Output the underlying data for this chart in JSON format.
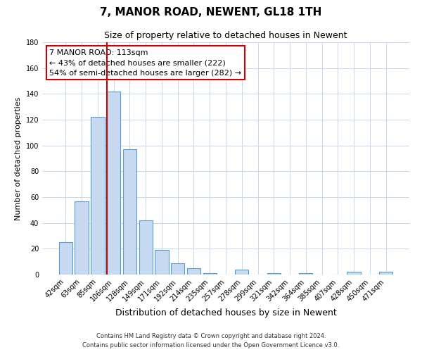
{
  "title": "7, MANOR ROAD, NEWENT, GL18 1TH",
  "subtitle": "Size of property relative to detached houses in Newent",
  "xlabel": "Distribution of detached houses by size in Newent",
  "ylabel": "Number of detached properties",
  "bar_labels": [
    "42sqm",
    "63sqm",
    "85sqm",
    "106sqm",
    "128sqm",
    "149sqm",
    "171sqm",
    "192sqm",
    "214sqm",
    "235sqm",
    "257sqm",
    "278sqm",
    "299sqm",
    "321sqm",
    "342sqm",
    "364sqm",
    "385sqm",
    "407sqm",
    "428sqm",
    "450sqm",
    "471sqm"
  ],
  "bar_values": [
    25,
    57,
    122,
    142,
    97,
    42,
    19,
    9,
    5,
    1,
    0,
    4,
    0,
    1,
    0,
    1,
    0,
    0,
    2,
    0,
    2
  ],
  "bar_color": "#c6d9f0",
  "bar_edge_color": "#5b9bd5",
  "vline_x": 3.0,
  "vline_color": "#cc0000",
  "ylim": [
    0,
    180
  ],
  "yticks": [
    0,
    20,
    40,
    60,
    80,
    100,
    120,
    140,
    160,
    180
  ],
  "annotation_title": "7 MANOR ROAD: 113sqm",
  "annotation_line1": "← 43% of detached houses are smaller (222)",
  "annotation_line2": "54% of semi-detached houses are larger (282) →",
  "annotation_box_color": "#ffffff",
  "annotation_box_edge": "#cc0000",
  "footer_line1": "Contains HM Land Registry data © Crown copyright and database right 2024.",
  "footer_line2": "Contains public sector information licensed under the Open Government Licence v3.0.",
  "background_color": "#ffffff",
  "grid_color": "#c8d8ec",
  "title_fontsize": 11,
  "subtitle_fontsize": 9,
  "tick_fontsize": 7,
  "ylabel_fontsize": 8,
  "xlabel_fontsize": 9
}
